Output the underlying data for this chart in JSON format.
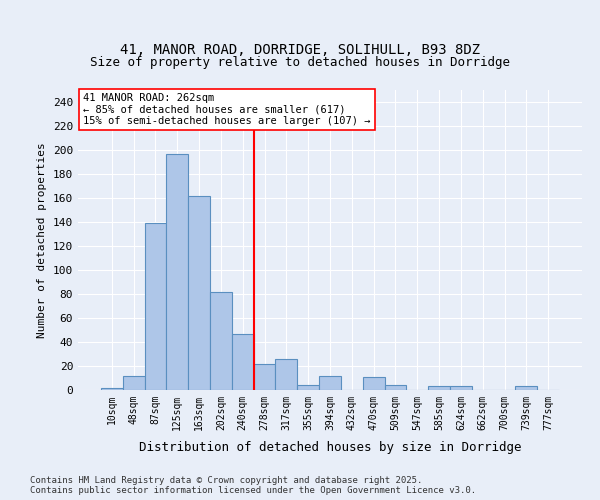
{
  "title1": "41, MANOR ROAD, DORRIDGE, SOLIHULL, B93 8DZ",
  "title2": "Size of property relative to detached houses in Dorridge",
  "xlabel": "Distribution of detached houses by size in Dorridge",
  "ylabel": "Number of detached properties",
  "footer": "Contains HM Land Registry data © Crown copyright and database right 2025.\nContains public sector information licensed under the Open Government Licence v3.0.",
  "bin_labels": [
    "10sqm",
    "48sqm",
    "87sqm",
    "125sqm",
    "163sqm",
    "202sqm",
    "240sqm",
    "278sqm",
    "317sqm",
    "355sqm",
    "394sqm",
    "432sqm",
    "470sqm",
    "509sqm",
    "547sqm",
    "585sqm",
    "624sqm",
    "662sqm",
    "700sqm",
    "739sqm",
    "777sqm"
  ],
  "bar_values": [
    2,
    12,
    139,
    197,
    162,
    82,
    47,
    22,
    26,
    4,
    12,
    0,
    11,
    4,
    0,
    3,
    3,
    0,
    0,
    3,
    0
  ],
  "bar_color": "#aec6e8",
  "bar_edgecolor": "#5a8fc0",
  "vline_bin_index": 6,
  "annotation_text": "41 MANOR ROAD: 262sqm\n← 85% of detached houses are smaller (617)\n15% of semi-detached houses are larger (107) →",
  "ylim": [
    0,
    250
  ],
  "yticks": [
    0,
    20,
    40,
    60,
    80,
    100,
    120,
    140,
    160,
    180,
    200,
    220,
    240
  ],
  "background_color": "#e8eef8",
  "grid_color": "#ffffff"
}
